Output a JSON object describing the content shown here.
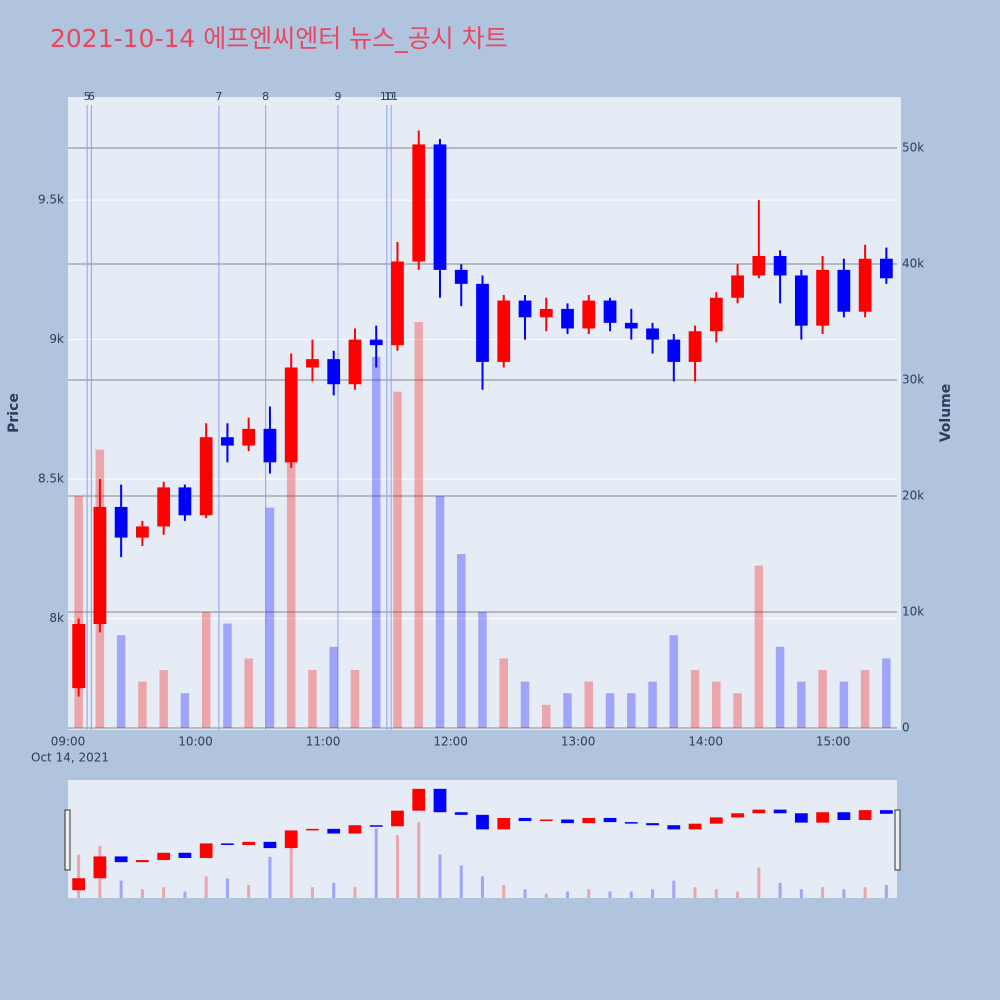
{
  "chart_data": {
    "type": "candlestick",
    "title": "2021-10-14 에프엔씨엔터 뉴스_공시 차트",
    "y_label": "Price",
    "y2_label": "Volume",
    "x_date_label": "Oct 14, 2021",
    "up_color": "#ff0000",
    "down_color": "#0000ff",
    "x": [
      "09:00",
      "09:10",
      "09:20",
      "09:30",
      "09:40",
      "09:50",
      "10:00",
      "10:10",
      "10:20",
      "10:30",
      "10:40",
      "10:50",
      "11:00",
      "11:10",
      "11:20",
      "11:30",
      "11:40",
      "11:50",
      "12:00",
      "12:10",
      "12:20",
      "12:30",
      "12:40",
      "12:50",
      "13:00",
      "13:10",
      "13:20",
      "13:30",
      "13:40",
      "13:50",
      "14:00",
      "14:10",
      "14:20",
      "14:30",
      "14:40",
      "14:50",
      "15:00",
      "15:10",
      "15:20"
    ],
    "open": [
      7750,
      7980,
      8400,
      8290,
      8330,
      8470,
      8370,
      8650,
      8620,
      8680,
      8560,
      8900,
      8930,
      8840,
      9000,
      8980,
      9280,
      9700,
      9250,
      9200,
      8920,
      9140,
      9080,
      9110,
      9040,
      9140,
      9060,
      9040,
      9000,
      8920,
      9030,
      9150,
      9230,
      9300,
      9230,
      9050,
      9250,
      9100,
      9290
    ],
    "high": [
      8000,
      8500,
      8480,
      8350,
      8490,
      8480,
      8700,
      8700,
      8720,
      8760,
      8950,
      9000,
      8960,
      9040,
      9050,
      9350,
      9750,
      9720,
      9270,
      9230,
      9160,
      9160,
      9150,
      9130,
      9160,
      9150,
      9110,
      9060,
      9020,
      9050,
      9170,
      9270,
      9500,
      9320,
      9250,
      9300,
      9290,
      9340,
      9330
    ],
    "low": [
      7720,
      7950,
      8220,
      8260,
      8300,
      8350,
      8360,
      8560,
      8600,
      8520,
      8540,
      8850,
      8800,
      8820,
      8900,
      8960,
      9250,
      9150,
      9120,
      8820,
      8900,
      9000,
      9030,
      9020,
      9020,
      9030,
      9000,
      8950,
      8850,
      8850,
      8990,
      9130,
      9220,
      9130,
      9000,
      9020,
      9080,
      9080,
      9200
    ],
    "close": [
      7980,
      8400,
      8290,
      8330,
      8470,
      8370,
      8650,
      8620,
      8680,
      8560,
      8900,
      8930,
      8840,
      9000,
      8980,
      9280,
      9700,
      9250,
      9200,
      8920,
      9140,
      9080,
      9110,
      9040,
      9140,
      9060,
      9040,
      9000,
      8920,
      9030,
      9150,
      9230,
      9300,
      9230,
      9050,
      9250,
      9100,
      9290,
      9220
    ],
    "volume": [
      20000,
      24000,
      8000,
      4000,
      5000,
      3000,
      10000,
      9000,
      6000,
      19000,
      26000,
      5000,
      7000,
      5000,
      32000,
      29000,
      35000,
      20000,
      15000,
      10000,
      6000,
      4000,
      2000,
      3000,
      4000,
      3000,
      3000,
      4000,
      8000,
      5000,
      4000,
      3000,
      14000,
      7000,
      4000,
      5000,
      4000,
      5000,
      6000
    ],
    "xlim": [
      "09:00",
      "15:30"
    ],
    "xticks": [
      "09:00",
      "10:00",
      "11:00",
      "12:00",
      "13:00",
      "14:00",
      "15:00"
    ],
    "ylim": [
      7600,
      9870
    ],
    "yticks": [
      {
        "value": 8000,
        "label": "8k"
      },
      {
        "value": 8500,
        "label": "8.5k"
      },
      {
        "value": 9000,
        "label": "9k"
      },
      {
        "value": 9500,
        "label": "9.5k"
      }
    ],
    "y2lim": [
      0,
      54400
    ],
    "y2ticks": [
      0,
      {
        "value": 10000,
        "label": "10k"
      },
      {
        "value": 20000,
        "label": "20k"
      },
      {
        "value": 30000,
        "label": "30k"
      },
      {
        "value": 40000,
        "label": "40k"
      },
      {
        "value": 50000,
        "label": "50k"
      }
    ],
    "events": [
      {
        "label": "5",
        "x": "09:09"
      },
      {
        "label": "6",
        "x": "09:11"
      },
      {
        "label": "7",
        "x": "10:11"
      },
      {
        "label": "8",
        "x": "10:33"
      },
      {
        "label": "9",
        "x": "11:07"
      },
      {
        "label": "10",
        "x": "11:30"
      },
      {
        "label": "11",
        "x": "11:32"
      }
    ]
  }
}
